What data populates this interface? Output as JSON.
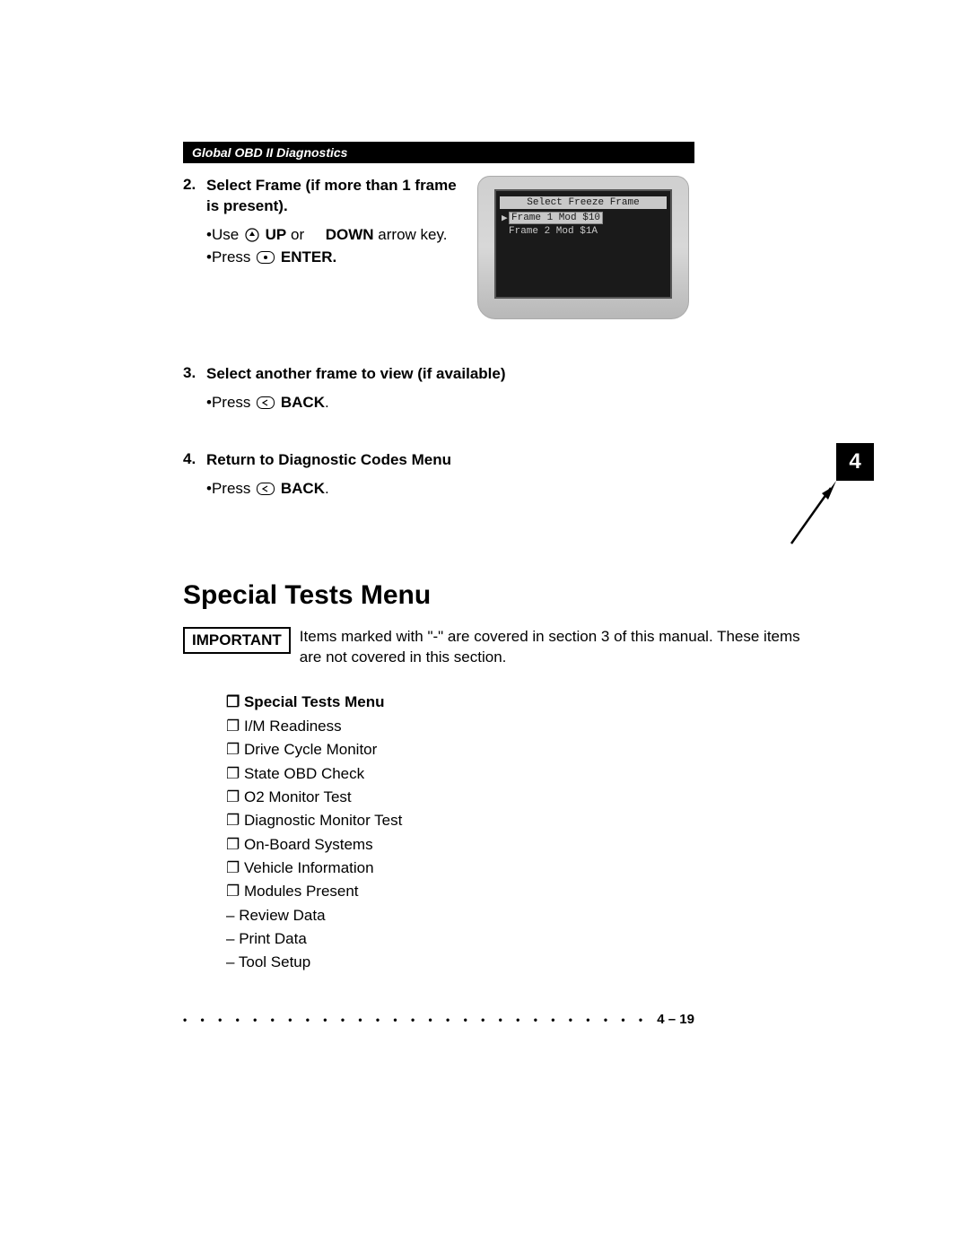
{
  "header": {
    "title": "Global OBD II Diagnostics"
  },
  "chapter_tab": "4",
  "step2": {
    "num": "2.",
    "title_a": "Select Frame (if more than 1 frame is present).",
    "line1_a": "•Use ",
    "line1_b": "UP",
    "line1_c": " or",
    "line1_d": "DOWN",
    "line1_e": " arrow key.",
    "line2_a": "•Press ",
    "line2_b": "ENTER."
  },
  "device": {
    "title": "Select Freeze Frame",
    "row1": "Frame 1  Mod $10",
    "row2": "Frame 2  Mod $1A"
  },
  "step3": {
    "num": "3.",
    "title": "Select another frame to view (if available)",
    "line1_a": "•Press ",
    "line1_b": "BACK"
  },
  "step4": {
    "num": "4.",
    "title_a": "Return to ",
    "title_b": "Diagnostic Codes Menu",
    "line1_a": "•Press ",
    "line1_b": "BACK"
  },
  "h1": "Special Tests Menu",
  "important": {
    "label": "IMPORTANT",
    "text": "Items marked with \"-\" are covered in section 3 of this manual. These items are not covered in this section."
  },
  "menu": {
    "heading": "Special Tests Menu",
    "items": [
      {
        "style": "box",
        "label": "I/M Readiness"
      },
      {
        "style": "box",
        "label": "Drive Cycle Monitor"
      },
      {
        "style": "box",
        "label": "State OBD Check"
      },
      {
        "style": "box",
        "label": "O2 Monitor Test"
      },
      {
        "style": "box",
        "label": "Diagnostic Monitor Test"
      },
      {
        "style": "box",
        "label": "On-Board Systems"
      },
      {
        "style": "box",
        "label": "Vehicle Information"
      },
      {
        "style": "box",
        "label": "Modules Present"
      },
      {
        "style": "dash",
        "label": " Review Data"
      },
      {
        "style": "dash",
        "label": " Print Data"
      },
      {
        "style": "dash",
        "label": " Tool Setup"
      }
    ]
  },
  "footer": {
    "page": "4 – 19"
  }
}
